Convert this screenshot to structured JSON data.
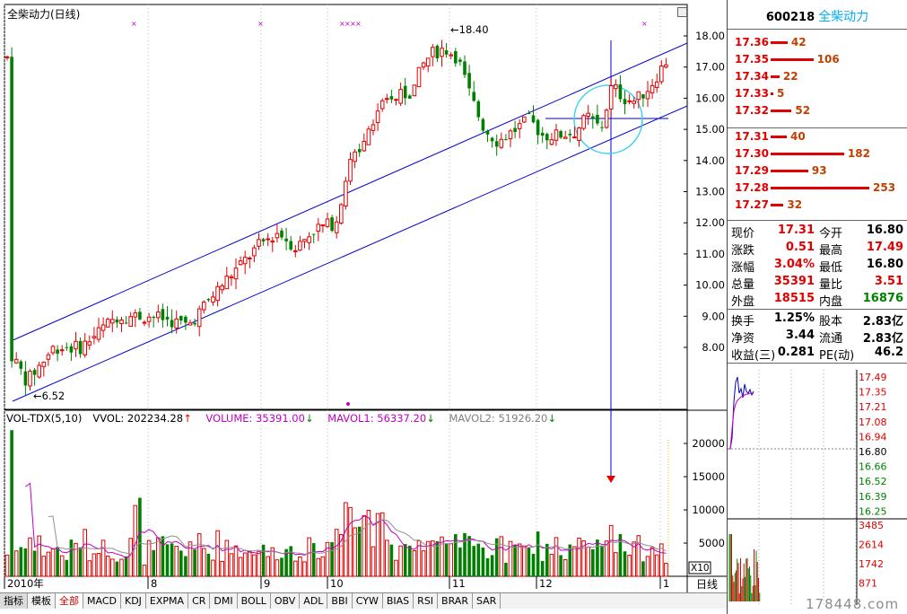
{
  "chart_title": "全柴动力(日线)",
  "price_axis": {
    "ticks": [
      "18.00",
      "17.00",
      "16.00",
      "15.00",
      "14.00",
      "13.00",
      "12.00",
      "11.00",
      "10.00",
      "9.00",
      "8.00"
    ]
  },
  "volume_axis": {
    "ticks": [
      "20000",
      "15000",
      "10000",
      "5000"
    ],
    "unit": "X10"
  },
  "time_axis": {
    "labels": [
      "2010年",
      "8",
      "9",
      "10",
      "11",
      "12",
      "1"
    ]
  },
  "annotations": {
    "high": "18.40",
    "low": "6.52"
  },
  "volume_legend": {
    "name": "VOL-TDX(5,10)",
    "vvol": "VVOL: 202234.28",
    "volume": "VOLUME: 35391.00",
    "mavol1": "MAVOL1: 56337.20",
    "mavol2": "MAVOL2: 51926.20"
  },
  "tabs": [
    "指标",
    "模板",
    "全部",
    "MACD",
    "KDJ",
    "EXPMA",
    "CR",
    "DMI",
    "BOLL",
    "OBV",
    "ADL",
    "BBI",
    "CYW",
    "BIAS",
    "RSI",
    "BRAR",
    "SAR"
  ],
  "period_label": "日线",
  "stock": {
    "code": "600218",
    "name": "全柴动力"
  },
  "order_book": {
    "asks": [
      {
        "price": "17.36",
        "vol": "42"
      },
      {
        "price": "17.35",
        "vol": "106"
      },
      {
        "price": "17.34",
        "vol": "22"
      },
      {
        "price": "17.33",
        "vol": "5"
      },
      {
        "price": "17.32",
        "vol": "52"
      }
    ],
    "bids": [
      {
        "price": "17.31",
        "vol": "40"
      },
      {
        "price": "17.30",
        "vol": "182"
      },
      {
        "price": "17.29",
        "vol": "93"
      },
      {
        "price": "17.28",
        "vol": "253"
      },
      {
        "price": "17.27",
        "vol": "32"
      }
    ]
  },
  "quote": [
    {
      "l": "现价",
      "v": "17.31",
      "l2": "今开",
      "v2": "16.80",
      "c": "red",
      "c2": "blk"
    },
    {
      "l": "涨跌",
      "v": "0.51",
      "l2": "最高",
      "v2": "17.49",
      "c": "red",
      "c2": "red"
    },
    {
      "l": "涨幅",
      "v": "3.04%",
      "l2": "最低",
      "v2": "16.80",
      "c": "red",
      "c2": "blk"
    },
    {
      "l": "总量",
      "v": "35391",
      "l2": "量比",
      "v2": "3.51",
      "c": "red",
      "c2": "red"
    },
    {
      "l": "外盘",
      "v": "18515",
      "l2": "内盘",
      "v2": "16876",
      "c": "red",
      "c2": "grn"
    },
    {
      "l": "换手",
      "v": "1.25%",
      "l2": "股本",
      "v2": "2.83亿",
      "c": "blk",
      "c2": "blk"
    },
    {
      "l": "净资",
      "v": "3.44",
      "l2": "流通",
      "v2": "2.83亿",
      "c": "blk",
      "c2": "blk"
    },
    {
      "l": "收益(三)",
      "v": "0.281",
      "l2": "PE(动)",
      "v2": "46.2",
      "c": "blk",
      "c2": "blk"
    }
  ],
  "intraday_axis": {
    "price": [
      "17.49",
      "17.35",
      "17.21",
      "17.08",
      "16.94",
      "16.80",
      "16.66",
      "16.52",
      "16.39",
      "16.25"
    ],
    "volume": [
      "3485",
      "2614",
      "1742",
      "871"
    ]
  },
  "watermark": "178448.com",
  "colors": {
    "up": "#e00000",
    "down": "#008000",
    "channel": "#0000cc",
    "ma1": "#c000c0",
    "ma2": "#909090",
    "axis": "#d00000"
  }
}
